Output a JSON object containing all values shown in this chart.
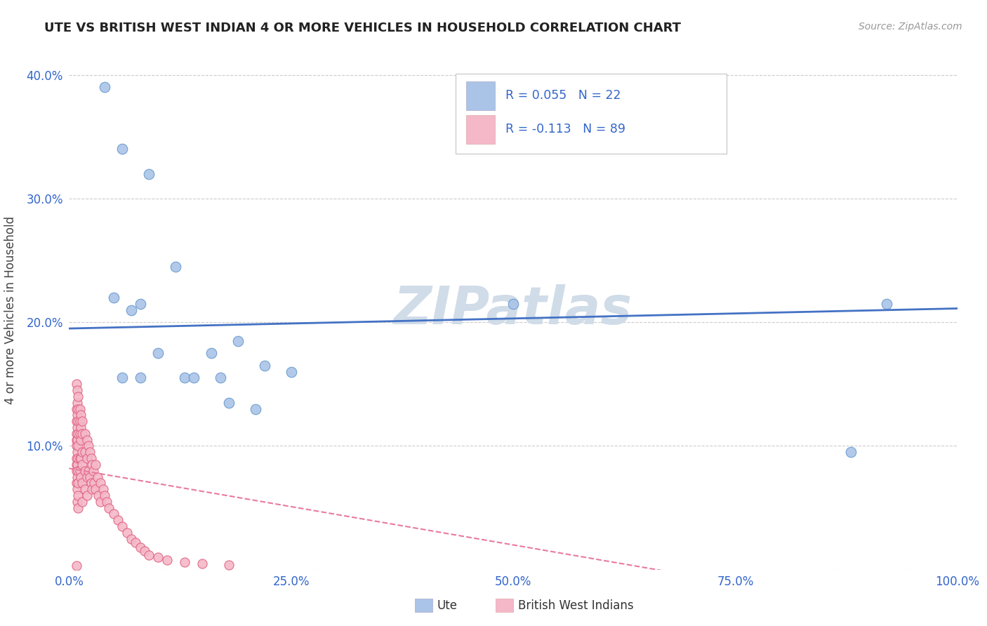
{
  "title": "UTE VS BRITISH WEST INDIAN 4 OR MORE VEHICLES IN HOUSEHOLD CORRELATION CHART",
  "source_text": "Source: ZipAtlas.com",
  "ylabel": "4 or more Vehicles in Household",
  "xlim": [
    0.0,
    1.0
  ],
  "ylim": [
    0.0,
    0.42
  ],
  "xticks": [
    0.0,
    0.25,
    0.5,
    0.75,
    1.0
  ],
  "xticklabels": [
    "0.0%",
    "25.0%",
    "50.0%",
    "75.0%",
    "100.0%"
  ],
  "yticks": [
    0.0,
    0.1,
    0.2,
    0.3,
    0.4
  ],
  "yticklabels": [
    "",
    "10.0%",
    "20.0%",
    "30.0%",
    "40.0%"
  ],
  "grid_color": "#cccccc",
  "background_color": "#ffffff",
  "ute_color": "#aac4e8",
  "ute_edge_color": "#6699cc",
  "bwi_color": "#f4b8c8",
  "bwi_edge_color": "#e06080",
  "ute_R": 0.055,
  "ute_N": 22,
  "bwi_R": -0.113,
  "bwi_N": 89,
  "legend_text_color": "#3366cc",
  "ute_line_color": "#4472c4",
  "bwi_line_color": "#e87aa0",
  "watermark_text": "ZIPatlas",
  "watermark_color": "#d0dce8",
  "ute_x": [
    0.04,
    0.06,
    0.09,
    0.05,
    0.08,
    0.12,
    0.1,
    0.07,
    0.06,
    0.08,
    0.13,
    0.16,
    0.19,
    0.22,
    0.14,
    0.17,
    0.18,
    0.21,
    0.25,
    0.5,
    0.88,
    0.92
  ],
  "ute_y": [
    0.39,
    0.34,
    0.32,
    0.22,
    0.215,
    0.245,
    0.175,
    0.21,
    0.155,
    0.155,
    0.155,
    0.175,
    0.185,
    0.165,
    0.155,
    0.155,
    0.135,
    0.13,
    0.16,
    0.215,
    0.095,
    0.215
  ],
  "bwi_x": [
    0.008,
    0.008,
    0.008,
    0.008,
    0.008,
    0.008,
    0.008,
    0.008,
    0.008,
    0.008,
    0.009,
    0.009,
    0.009,
    0.009,
    0.009,
    0.009,
    0.009,
    0.009,
    0.009,
    0.009,
    0.01,
    0.01,
    0.01,
    0.01,
    0.01,
    0.01,
    0.01,
    0.01,
    0.01,
    0.01,
    0.012,
    0.012,
    0.012,
    0.012,
    0.012,
    0.013,
    0.013,
    0.013,
    0.013,
    0.013,
    0.015,
    0.015,
    0.015,
    0.015,
    0.015,
    0.015,
    0.018,
    0.018,
    0.018,
    0.018,
    0.02,
    0.02,
    0.02,
    0.02,
    0.022,
    0.022,
    0.023,
    0.023,
    0.025,
    0.025,
    0.026,
    0.026,
    0.027,
    0.028,
    0.03,
    0.03,
    0.032,
    0.033,
    0.035,
    0.035,
    0.038,
    0.04,
    0.042,
    0.045,
    0.05,
    0.055,
    0.06,
    0.065,
    0.07,
    0.075,
    0.08,
    0.085,
    0.09,
    0.1,
    0.11,
    0.13,
    0.15,
    0.18,
    0.008
  ],
  "bwi_y": [
    0.15,
    0.13,
    0.12,
    0.11,
    0.105,
    0.1,
    0.09,
    0.085,
    0.08,
    0.07,
    0.145,
    0.135,
    0.125,
    0.115,
    0.105,
    0.095,
    0.085,
    0.075,
    0.065,
    0.055,
    0.14,
    0.13,
    0.12,
    0.11,
    0.1,
    0.09,
    0.08,
    0.07,
    0.06,
    0.05,
    0.13,
    0.12,
    0.11,
    0.09,
    0.08,
    0.125,
    0.115,
    0.105,
    0.09,
    0.075,
    0.12,
    0.11,
    0.095,
    0.085,
    0.07,
    0.055,
    0.11,
    0.095,
    0.08,
    0.065,
    0.105,
    0.09,
    0.075,
    0.06,
    0.1,
    0.08,
    0.095,
    0.075,
    0.09,
    0.07,
    0.085,
    0.065,
    0.08,
    0.07,
    0.085,
    0.065,
    0.075,
    0.06,
    0.07,
    0.055,
    0.065,
    0.06,
    0.055,
    0.05,
    0.045,
    0.04,
    0.035,
    0.03,
    0.025,
    0.022,
    0.018,
    0.015,
    0.012,
    0.01,
    0.008,
    0.006,
    0.005,
    0.004,
    0.003
  ]
}
